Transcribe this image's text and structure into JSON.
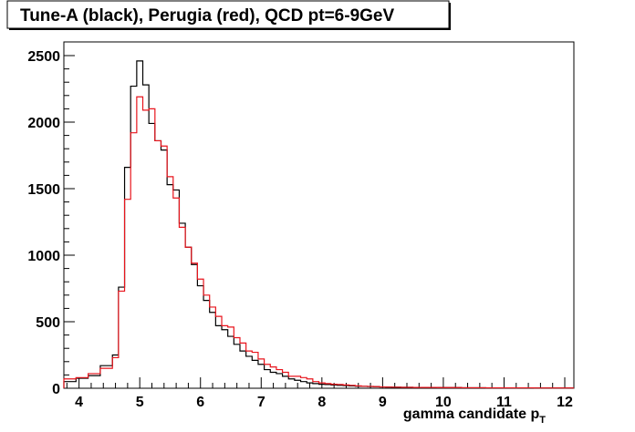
{
  "chart_data": {
    "type": "histogram",
    "title": "Tune-A (black), Perugia (red), QCD pt=6-9GeV",
    "xlabel_main": "gamma candidate p",
    "xlabel_sub": "T",
    "ylabel": "",
    "xlim": [
      3.75,
      12.15
    ],
    "ylim": [
      0,
      2500
    ],
    "x_ticks": [
      4,
      5,
      6,
      7,
      8,
      9,
      10,
      11,
      12
    ],
    "y_ticks": [
      0,
      500,
      1000,
      1500,
      2000,
      2500
    ],
    "grid": false,
    "legend": "none",
    "bin_edges": [
      3.75,
      3.95,
      4.15,
      4.35,
      4.55,
      4.65,
      4.75,
      4.85,
      4.95,
      5.05,
      5.15,
      5.25,
      5.35,
      5.45,
      5.55,
      5.65,
      5.75,
      5.85,
      5.95,
      6.05,
      6.15,
      6.25,
      6.35,
      6.45,
      6.55,
      6.65,
      6.75,
      6.85,
      6.95,
      7.05,
      7.15,
      7.25,
      7.35,
      7.45,
      7.55,
      7.65,
      7.75,
      7.85,
      7.95,
      8.05,
      8.15,
      8.25,
      8.35,
      8.45,
      8.55,
      8.65,
      8.75,
      8.85,
      8.95,
      9.05,
      9.15,
      9.3,
      9.5,
      9.7,
      9.9,
      10.1,
      10.3,
      10.5,
      10.7,
      10.9,
      11.1,
      11.3,
      11.5,
      11.7,
      11.9,
      12.15
    ],
    "series": [
      {
        "name": "Tune-A",
        "color": "#000000",
        "values": [
          50,
          75,
          95,
          170,
          250,
          760,
          1660,
          2270,
          2460,
          2280,
          1990,
          1860,
          1790,
          1530,
          1490,
          1240,
          1060,
          930,
          770,
          660,
          570,
          470,
          440,
          390,
          330,
          280,
          240,
          210,
          180,
          140,
          120,
          110,
          90,
          70,
          60,
          50,
          40,
          35,
          30,
          28,
          25,
          22,
          20,
          18,
          15,
          14,
          13,
          12,
          10,
          9,
          8,
          7,
          6,
          6,
          5,
          5,
          4,
          4,
          3,
          3,
          3,
          3,
          2,
          2,
          2
        ]
      },
      {
        "name": "Perugia",
        "color": "#e8141c",
        "values": [
          70,
          80,
          110,
          150,
          230,
          730,
          1420,
          1920,
          2190,
          2090,
          2100,
          1860,
          1820,
          1590,
          1430,
          1210,
          1060,
          940,
          820,
          700,
          610,
          540,
          470,
          460,
          380,
          340,
          280,
          270,
          220,
          180,
          160,
          140,
          120,
          90,
          90,
          80,
          70,
          50,
          40,
          35,
          30,
          28,
          25,
          22,
          18,
          15,
          14,
          12,
          10,
          9,
          8,
          7,
          6,
          6,
          5,
          5,
          4,
          4,
          3,
          3,
          3,
          3,
          2,
          2,
          2
        ]
      }
    ]
  }
}
